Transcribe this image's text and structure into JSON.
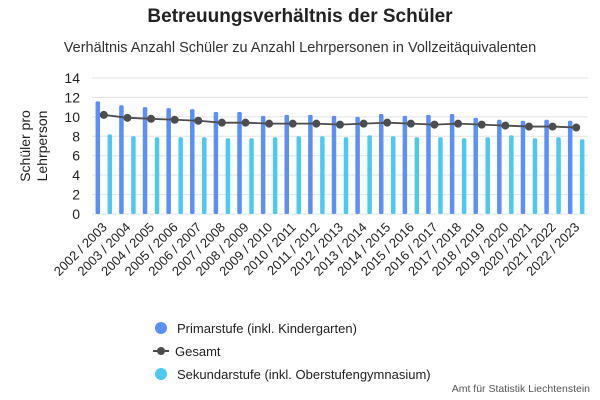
{
  "chart_data": {
    "type": "bar",
    "title": "Betreuungsverhältnis der Schüler",
    "subtitle": "Verhältnis Anzahl Schüler zu Anzahl Lehrpersonen in Vollzeitäquivalenten",
    "ylabel_lines": [
      "Schüler pro",
      "Lehrperson"
    ],
    "ylim": [
      0,
      14
    ],
    "yticks": [
      0,
      2,
      4,
      6,
      8,
      10,
      12,
      14
    ],
    "grid": true,
    "legend_position": "bottom",
    "categories": [
      "2002 / 2003",
      "2003 / 2004",
      "2004 / 2005",
      "2005 / 2006",
      "2006 / 2007",
      "2007 / 2008",
      "2008 / 2009",
      "2009 / 2010",
      "2010 / 2011",
      "2011 / 2012",
      "2012 / 2013",
      "2013 / 2014",
      "2014 / 2015",
      "2015 / 2016",
      "2016 / 2017",
      "2017 / 2018",
      "2018 / 2019",
      "2019 / 2020",
      "2020 / 2021",
      "2021 / 2022",
      "2022 / 2023"
    ],
    "series": [
      {
        "name": "Primarstufe (inkl. Kindergarten)",
        "kind": "bar",
        "color": "#5b8ff9",
        "values": [
          11.6,
          11.2,
          11.0,
          10.9,
          10.8,
          10.5,
          10.5,
          10.1,
          10.2,
          10.2,
          10.1,
          10.0,
          10.3,
          10.1,
          10.2,
          10.3,
          9.9,
          9.7,
          9.6,
          9.7,
          9.6
        ]
      },
      {
        "name": "Gesamt",
        "kind": "line",
        "color": "#4d4d4d",
        "values": [
          10.2,
          9.9,
          9.8,
          9.7,
          9.6,
          9.4,
          9.4,
          9.3,
          9.3,
          9.3,
          9.2,
          9.3,
          9.4,
          9.3,
          9.2,
          9.3,
          9.2,
          9.1,
          9.0,
          9.0,
          8.9
        ]
      },
      {
        "name": "Sekundarstufe (inkl. Oberstufengymnasium)",
        "kind": "bar",
        "color": "#4cc9f0",
        "values": [
          8.2,
          8.0,
          7.9,
          7.9,
          7.9,
          7.8,
          7.8,
          7.9,
          8.0,
          8.0,
          7.9,
          8.1,
          8.0,
          7.9,
          7.9,
          7.8,
          7.9,
          8.1,
          7.8,
          7.9,
          7.7
        ]
      }
    ]
  },
  "source": "Amt für Statistik Liechtenstein"
}
